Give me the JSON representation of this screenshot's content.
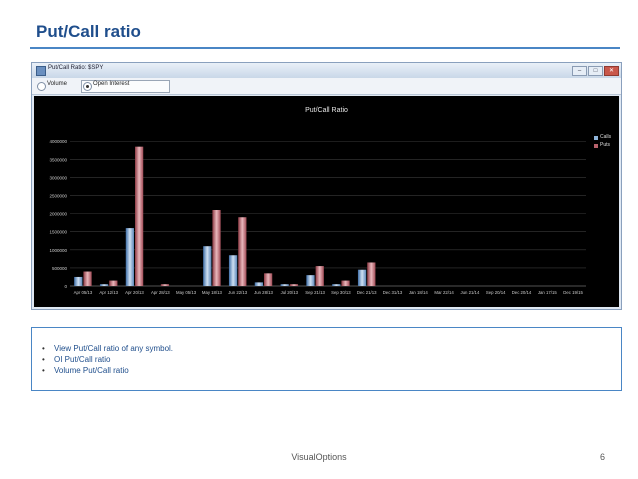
{
  "slide": {
    "title": "Put/Call ratio",
    "footer": "VisualOptions",
    "page_number": "6"
  },
  "window": {
    "title": "Put/Call Ratio: $SPY",
    "buttons": {
      "minimize": "–",
      "maximize": "□",
      "close": "✕"
    }
  },
  "toolbar": {
    "options": [
      {
        "label": "Volume",
        "checked": false
      },
      {
        "label": "Open Interest",
        "checked": true
      }
    ]
  },
  "bullets": [
    "View Put/Call ratio of any symbol.",
    "OI Put/Call ratio",
    "Volume Put/Call ratio"
  ],
  "colors": {
    "calls": "#8fb4da",
    "puts": "#b8626c",
    "accent": "#1f4e8c"
  },
  "chart_data": {
    "type": "bar",
    "title": "Put/Call Ratio",
    "categories": [
      "Apr 05/13",
      "Apr 12/13",
      "Apr 20/13",
      "Apr 28/13",
      "May 05/13",
      "May 18/13",
      "Jun 22/13",
      "Jun 28/13",
      "Jul 20/13",
      "Sep 21/13",
      "Sep 30/13",
      "Dec 21/13",
      "Dec 31/13",
      "Jan 18/14",
      "Mar 22/14",
      "Jun 21/14",
      "Sep 20/14",
      "Dec 20/14",
      "Jan 17/15",
      "Dec 19/15"
    ],
    "series": [
      {
        "name": "Calls",
        "values": [
          250000,
          50000,
          1600000,
          0,
          0,
          1100000,
          850000,
          100000,
          50000,
          300000,
          50000,
          450000,
          0,
          0,
          0,
          0,
          0,
          0,
          0,
          0
        ]
      },
      {
        "name": "Puts",
        "values": [
          400000,
          150000,
          3850000,
          50000,
          0,
          2100000,
          1900000,
          350000,
          50000,
          550000,
          150000,
          650000,
          0,
          0,
          0,
          0,
          0,
          0,
          0,
          0
        ]
      }
    ],
    "yticks": [
      "0",
      "500000",
      "1000000",
      "1500000",
      "2000000",
      "2500000",
      "3000000",
      "3500000",
      "4000000"
    ],
    "ylim": [
      0,
      4200000
    ],
    "grid": true,
    "legend": "top-right"
  }
}
